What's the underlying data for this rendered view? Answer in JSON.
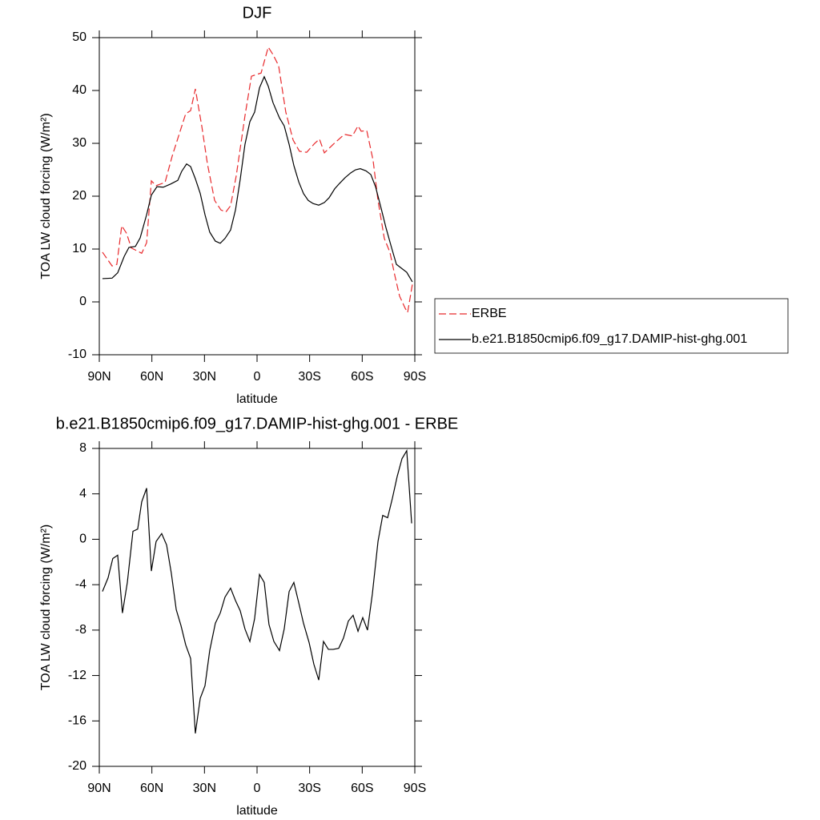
{
  "chart_data": [
    {
      "type": "line",
      "title": "DJF",
      "xlabel": "latitude",
      "ylabel": "TOA LW cloud forcing (W/m²)",
      "xlim": [
        90,
        -90
      ],
      "xticks": [
        {
          "value": 90,
          "label": "90N"
        },
        {
          "value": 60,
          "label": "60N"
        },
        {
          "value": 30,
          "label": "30N"
        },
        0,
        {
          "value": -30,
          "label": "30S"
        },
        {
          "value": -60,
          "label": "60S"
        },
        {
          "value": -90,
          "label": "90S"
        }
      ],
      "ylim": [
        -10,
        50
      ],
      "yticks": [
        -10,
        0,
        10,
        20,
        30,
        40,
        50
      ],
      "legend": "right",
      "series": [
        {
          "name": "ERBE",
          "color": "#e8292c",
          "style": "dashed",
          "x": [
            88.2,
            82.7,
            80,
            77.2,
            74.5,
            71.7,
            65.8,
            63.0,
            60.3,
            57.6,
            52.5,
            48.4,
            40.7,
            37.9,
            35.2,
            31.5,
            28.3,
            24.2,
            20.6,
            17.8,
            15.1,
            11.9,
            6.9,
            3.2,
            0.5,
            -2.3,
            -6.4,
            -9.1,
            -12.3,
            -16.4,
            -20.6,
            -24.2,
            -28.3,
            -32.9,
            -35.6,
            -38.4,
            -43.4,
            -49.8,
            -54.4,
            -57.6,
            -59.4,
            -62.6,
            -66.2,
            -69.0,
            -72.6,
            -75.8,
            -78.6,
            -81.3,
            -84.5,
            -85.9,
            -88.6
          ],
          "values": [
            9.4,
            6.8,
            7.1,
            14.4,
            13.0,
            10.2,
            9.2,
            11.2,
            22.9,
            22.0,
            22.6,
            27.6,
            35.6,
            36.2,
            40.3,
            33.2,
            26.1,
            19.2,
            17.4,
            17.0,
            18.2,
            23.8,
            35.2,
            42.7,
            43.0,
            43.3,
            48.2,
            46.8,
            44.7,
            35.9,
            30.6,
            28.5,
            28.3,
            30.0,
            30.8,
            28.2,
            29.8,
            31.7,
            31.4,
            33.3,
            32.3,
            32.4,
            26.8,
            19.2,
            12.0,
            9.4,
            5.0,
            1.1,
            -1.2,
            -2.0,
            3.3
          ]
        },
        {
          "name": "b.e21.B1850cmip6.f09_g17.DAMIP-hist-ghg.001",
          "color": "#000000",
          "style": "solid",
          "x": [
            88.2,
            82.7,
            79.5,
            75.8,
            73.1,
            69.4,
            66.7,
            63.0,
            60.3,
            57.1,
            53.5,
            49.3,
            45.2,
            43.0,
            40.2,
            37.9,
            35.2,
            32.4,
            29.7,
            27.0,
            23.8,
            21.0,
            18.3,
            15.1,
            12.3,
            9.6,
            6.9,
            4.1,
            1.4,
            -1.4,
            -4.1,
            -6.4,
            -9.1,
            -12.8,
            -15.5,
            -18.3,
            -21.0,
            -23.8,
            -26.5,
            -29.2,
            -32.0,
            -35.2,
            -38.4,
            -41.1,
            -44.3,
            -47.0,
            -50.2,
            -53.4,
            -56.2,
            -58.9,
            -62.1,
            -64.9,
            -67.6,
            -70.8,
            -73.5,
            -76.7,
            -79.5,
            -85.4,
            -88.6
          ],
          "values": [
            4.4,
            4.5,
            5.5,
            8.6,
            10.3,
            10.5,
            12.1,
            16.5,
            20.2,
            21.8,
            21.7,
            22.3,
            23.0,
            24.7,
            26.1,
            25.6,
            23.3,
            20.5,
            16.5,
            13.2,
            11.5,
            11.1,
            12.0,
            13.6,
            17.4,
            23.2,
            29.8,
            34.1,
            35.9,
            40.5,
            42.6,
            40.8,
            37.7,
            34.8,
            33.3,
            29.8,
            25.8,
            22.7,
            20.5,
            19.2,
            18.6,
            18.3,
            18.8,
            19.7,
            21.4,
            22.4,
            23.5,
            24.4,
            25.0,
            25.2,
            24.8,
            24.1,
            21.8,
            17.7,
            14.1,
            10.3,
            7.1,
            5.6,
            3.8
          ]
        }
      ]
    },
    {
      "type": "line",
      "title": "b.e21.B1850cmip6.f09_g17.DAMIP-hist-ghg.001 - ERBE",
      "xlabel": "latitude",
      "ylabel": "TOA LW cloud forcing (W/m²)",
      "xlim": [
        90,
        -90
      ],
      "xticks": [
        {
          "value": 90,
          "label": "90N"
        },
        {
          "value": 60,
          "label": "60N"
        },
        {
          "value": 30,
          "label": "30N"
        },
        0,
        {
          "value": -30,
          "label": "30S"
        },
        {
          "value": -60,
          "label": "60S"
        },
        {
          "value": -90,
          "label": "90S"
        }
      ],
      "ylim": [
        -20,
        8
      ],
      "yticks": [
        -20,
        -16,
        -12,
        -8,
        -4,
        0,
        4,
        8
      ],
      "color": "#000000",
      "x": [
        88.2,
        85.0,
        82.3,
        79.5,
        76.8,
        74.0,
        70.8,
        68.1,
        65.8,
        63.0,
        60.3,
        57.6,
        54.4,
        51.6,
        48.9,
        46.1,
        43.4,
        40.7,
        37.9,
        35.2,
        32.4,
        29.7,
        27.0,
        23.8,
        21.0,
        18.3,
        15.1,
        12.3,
        9.6,
        6.9,
        4.1,
        1.4,
        -1.4,
        -4.1,
        -6.8,
        -9.6,
        -12.8,
        -15.5,
        -18.3,
        -21.0,
        -23.8,
        -26.5,
        -29.7,
        -32.4,
        -35.2,
        -37.9,
        -40.7,
        -43.4,
        -46.6,
        -49.3,
        -52.1,
        -54.8,
        -57.6,
        -60.3,
        -63.0,
        -65.8,
        -69.0,
        -71.7,
        -74.5,
        -77.2,
        -79.9,
        -82.7,
        -85.4,
        -88.2
      ],
      "values": [
        -4.6,
        -3.4,
        -1.7,
        -1.4,
        -6.5,
        -3.8,
        0.7,
        0.9,
        3.3,
        4.5,
        -2.8,
        -0.2,
        0.5,
        -0.5,
        -3.0,
        -6.2,
        -7.6,
        -9.3,
        -10.5,
        -17.1,
        -14.0,
        -12.9,
        -9.8,
        -7.4,
        -6.5,
        -5.1,
        -4.3,
        -5.4,
        -6.3,
        -7.9,
        -9.0,
        -7.0,
        -3.1,
        -3.8,
        -7.5,
        -9.0,
        -9.8,
        -7.9,
        -4.6,
        -3.8,
        -5.6,
        -7.4,
        -9.1,
        -11.0,
        -12.4,
        -9.0,
        -9.7,
        -9.7,
        -9.6,
        -8.7,
        -7.2,
        -6.7,
        -8.1,
        -6.9,
        -8.0,
        -4.8,
        -0.2,
        2.1,
        1.9,
        3.6,
        5.5,
        7.1,
        7.8,
        1.4
      ]
    }
  ]
}
